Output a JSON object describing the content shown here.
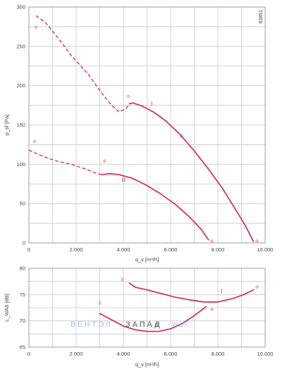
{
  "chart_data": [
    {
      "type": "line",
      "ylabel": "p_sf [Pa]",
      "xlabel": "q_v [m³/h]",
      "xlim": [
        0,
        10000
      ],
      "ylim": [
        0,
        300
      ],
      "x_ticks": [
        "0",
        "2.000",
        "4.000",
        "6.000",
        "8.000",
        "10.000"
      ],
      "y_ticks": [
        "0",
        "50",
        "100",
        "150",
        "200",
        "250",
        "300"
      ],
      "grid": true,
      "code": "83851",
      "series": [
        {
          "name": "I",
          "dashed": [
            [
              300,
              289
            ],
            [
              700,
              280
            ],
            [
              1200,
              262
            ],
            [
              1800,
              238
            ],
            [
              2500,
              215
            ],
            [
              3100,
              190
            ],
            [
              3500,
              175
            ],
            [
              3800,
              167
            ],
            [
              4100,
              170
            ],
            [
              4250,
              177
            ]
          ],
          "solid": [
            [
              4250,
              177
            ],
            [
              4400,
              178
            ],
            [
              4800,
              174
            ],
            [
              5300,
              166
            ],
            [
              5800,
              155
            ],
            [
              6400,
              138
            ],
            [
              7000,
              117
            ],
            [
              7600,
              94
            ],
            [
              8200,
              69
            ],
            [
              8800,
              40
            ],
            [
              9200,
              20
            ],
            [
              9500,
              2
            ]
          ]
        },
        {
          "name": "II",
          "dashed": [
            [
              0,
              118
            ],
            [
              600,
              110
            ],
            [
              1200,
              104
            ],
            [
              1800,
              100
            ],
            [
              2400,
              94
            ],
            [
              2900,
              88
            ],
            [
              3100,
              87
            ]
          ],
          "solid": [
            [
              3100,
              87
            ],
            [
              3400,
              88
            ],
            [
              3800,
              87
            ],
            [
              4400,
              82
            ],
            [
              5000,
              73
            ],
            [
              5600,
              62
            ],
            [
              6200,
              49
            ],
            [
              6800,
              33
            ],
            [
              7300,
              17
            ],
            [
              7600,
              4
            ]
          ]
        }
      ],
      "points": [
        {
          "label": "①",
          "x": 300,
          "y": 275
        },
        {
          "label": "②",
          "x": 4200,
          "y": 187
        },
        {
          "label": "③",
          "x": 9650,
          "y": 3
        },
        {
          "label": "④",
          "x": 250,
          "y": 130
        },
        {
          "label": "⑤",
          "x": 3200,
          "y": 105
        },
        {
          "label": "⑥",
          "x": 7750,
          "y": 3
        },
        {
          "label": "⑩",
          "x": 6450,
          "y": 136
        }
      ],
      "roman_labels": [
        {
          "label": "I",
          "x": 5200,
          "y": 175
        },
        {
          "label": "II",
          "x": 4000,
          "y": 78
        }
      ]
    },
    {
      "type": "line",
      "ylabel": "L_WA6 [dB]",
      "xlabel": "q_v [m³/h]",
      "xlim": [
        0,
        10000
      ],
      "ylim": [
        65,
        80
      ],
      "x_ticks": [
        "0",
        "2.000",
        "4.000",
        "6.000",
        "8.000",
        "10.000"
      ],
      "y_ticks": [
        "65",
        "70",
        "75",
        "80"
      ],
      "grid": true,
      "series": [
        {
          "name": "I",
          "solid": [
            [
              4250,
              77.2
            ],
            [
              4500,
              76.4
            ],
            [
              5000,
              75.9
            ],
            [
              5600,
              75.2
            ],
            [
              6200,
              74.5
            ],
            [
              6800,
              74.0
            ],
            [
              7400,
              73.6
            ],
            [
              8000,
              73.6
            ],
            [
              8600,
              74.2
            ],
            [
              9100,
              75.0
            ],
            [
              9500,
              75.9
            ]
          ]
        },
        {
          "name": "II",
          "solid": [
            [
              3000,
              71.4
            ],
            [
              3500,
              70.2
            ],
            [
              4000,
              69.0
            ],
            [
              4500,
              68.3
            ],
            [
              5000,
              68.0
            ],
            [
              5500,
              68.0
            ],
            [
              6000,
              68.5
            ],
            [
              6500,
              69.5
            ],
            [
              7000,
              71.0
            ],
            [
              7500,
              72.7
            ]
          ]
        }
      ],
      "points": [
        {
          "label": "①",
          "x": 3000,
          "y": 73.5
        },
        {
          "label": "②",
          "x": 3950,
          "y": 78.0
        },
        {
          "label": "③",
          "x": 9650,
          "y": 76.5
        },
        {
          "label": "⑥",
          "x": 7750,
          "y": 72.3
        }
      ],
      "roman_labels": [
        {
          "label": "I",
          "x": 8150,
          "y": 75.3
        },
        {
          "label": "II",
          "x": 5400,
          "y": 68.8
        }
      ]
    }
  ],
  "watermark": {
    "text1": "ВЕНТЭЛ",
    "text2": "ЗАПАД",
    "text3": "W.BY",
    "color1": "#7fb2dc",
    "color2": "#5e5e5e"
  },
  "colors": {
    "curve": "#d6336c",
    "grid": "#c8c8c8",
    "axis": "#9a9a9a"
  }
}
